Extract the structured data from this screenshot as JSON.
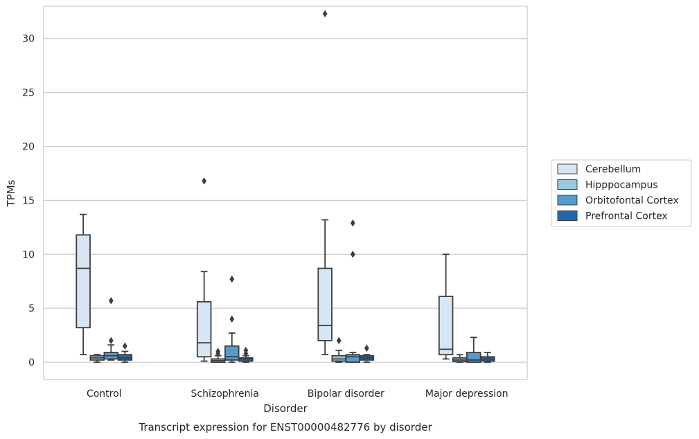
{
  "chart_data": {
    "type": "boxplot",
    "xlabel": "Disorder",
    "ylabel": "TPMs",
    "caption": "Transcript expression for ENST00000482776 by disorder",
    "ylim": [
      -1.6,
      33.0
    ],
    "yticks": [
      0,
      5,
      10,
      15,
      20,
      25,
      30
    ],
    "grid": "horizontal",
    "legend_position": "right",
    "categories": [
      "Control",
      "Schizophrenia",
      "Bipolar disorder",
      "Major depression"
    ],
    "series": [
      {
        "name": "Cerebellum",
        "color": "#d6e6f4",
        "boxes": [
          {
            "q1": 3.2,
            "median": 8.7,
            "q3": 11.8,
            "whisker_low": 0.7,
            "whisker_high": 13.7,
            "outliers": []
          },
          {
            "q1": 0.5,
            "median": 1.8,
            "q3": 5.6,
            "whisker_low": 0.1,
            "whisker_high": 8.4,
            "outliers": [
              16.8
            ]
          },
          {
            "q1": 2.0,
            "median": 3.4,
            "q3": 8.7,
            "whisker_low": 0.7,
            "whisker_high": 13.2,
            "outliers": [
              32.3
            ]
          },
          {
            "q1": 0.7,
            "median": 1.2,
            "q3": 6.1,
            "whisker_low": 0.3,
            "whisker_high": 10.0,
            "outliers": []
          }
        ]
      },
      {
        "name": "Hipppocampus",
        "color": "#9ac8e0",
        "boxes": [
          {
            "q1": 0.2,
            "median": 0.4,
            "q3": 0.6,
            "whisker_low": 0.0,
            "whisker_high": 0.7,
            "outliers": []
          },
          {
            "q1": 0.0,
            "median": 0.15,
            "q3": 0.3,
            "whisker_low": 0.0,
            "whisker_high": 0.6,
            "outliers": [
              0.8,
              1.0
            ]
          },
          {
            "q1": 0.1,
            "median": 0.3,
            "q3": 0.6,
            "whisker_low": 0.0,
            "whisker_high": 1.1,
            "outliers": [
              2.0
            ]
          },
          {
            "q1": 0.05,
            "median": 0.2,
            "q3": 0.4,
            "whisker_low": 0.0,
            "whisker_high": 0.7,
            "outliers": []
          }
        ]
      },
      {
        "name": "Orbitofontal Cortex",
        "color": "#529dcc",
        "boxes": [
          {
            "q1": 0.3,
            "median": 0.6,
            "q3": 0.9,
            "whisker_low": 0.2,
            "whisker_high": 1.6,
            "outliers": [
              2.0,
              5.7
            ]
          },
          {
            "q1": 0.2,
            "median": 0.5,
            "q3": 1.5,
            "whisker_low": 0.0,
            "whisker_high": 2.7,
            "outliers": [
              4.0,
              7.7
            ]
          },
          {
            "q1": 0.0,
            "median": 0.5,
            "q3": 0.7,
            "whisker_low": 0.0,
            "whisker_high": 0.9,
            "outliers": [
              10.0,
              12.9
            ]
          },
          {
            "q1": 0.0,
            "median": 0.2,
            "q3": 0.9,
            "whisker_low": 0.0,
            "whisker_high": 2.3,
            "outliers": []
          }
        ]
      },
      {
        "name": "Prefrontal Cortex",
        "color": "#1c6aaf",
        "boxes": [
          {
            "q1": 0.2,
            "median": 0.4,
            "q3": 0.7,
            "whisker_low": 0.0,
            "whisker_high": 1.0,
            "outliers": [
              1.5
            ]
          },
          {
            "q1": 0.1,
            "median": 0.3,
            "q3": 0.4,
            "whisker_low": 0.0,
            "whisker_high": 0.6,
            "outliers": [
              0.8,
              1.1
            ]
          },
          {
            "q1": 0.2,
            "median": 0.4,
            "q3": 0.6,
            "whisker_low": 0.0,
            "whisker_high": 0.7,
            "outliers": [
              1.3
            ]
          },
          {
            "q1": 0.1,
            "median": 0.3,
            "q3": 0.5,
            "whisker_low": 0.0,
            "whisker_high": 0.9,
            "outliers": []
          }
        ]
      }
    ]
  }
}
